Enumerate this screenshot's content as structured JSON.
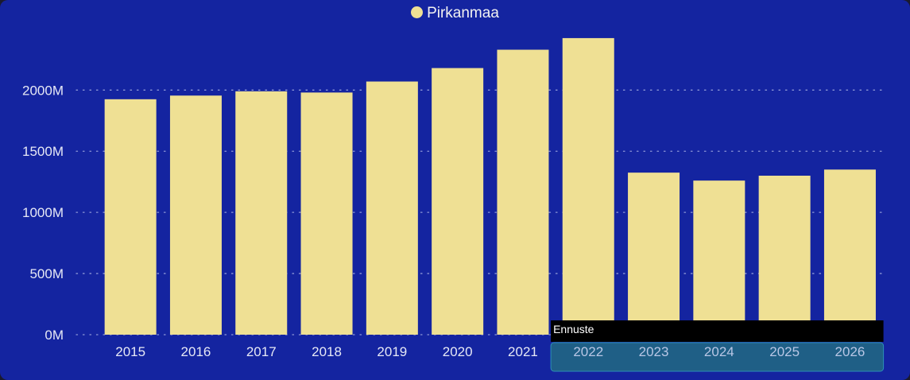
{
  "chart_data": {
    "type": "bar",
    "categories": [
      "2015",
      "2016",
      "2017",
      "2018",
      "2019",
      "2020",
      "2021",
      "2022",
      "2023",
      "2024",
      "2025",
      "2026"
    ],
    "series": [
      {
        "name": "Pirkanmaa",
        "values": [
          1925,
          1955,
          1990,
          1980,
          2070,
          2180,
          2330,
          2425,
          1325,
          1260,
          1300,
          1350
        ]
      }
    ],
    "y_ticks": [
      "0M",
      "500M",
      "1000M",
      "1500M",
      "2000M"
    ],
    "ylim": [
      0,
      2600
    ],
    "legend_position": "top-center",
    "grid": true,
    "forecast_label": "Ennuste",
    "forecast_categories": [
      "2022",
      "2023",
      "2024",
      "2025",
      "2026"
    ],
    "colors": {
      "bar": "#efe094",
      "background": "#1424a0",
      "forecast_highlight": "#1f5f86"
    }
  }
}
